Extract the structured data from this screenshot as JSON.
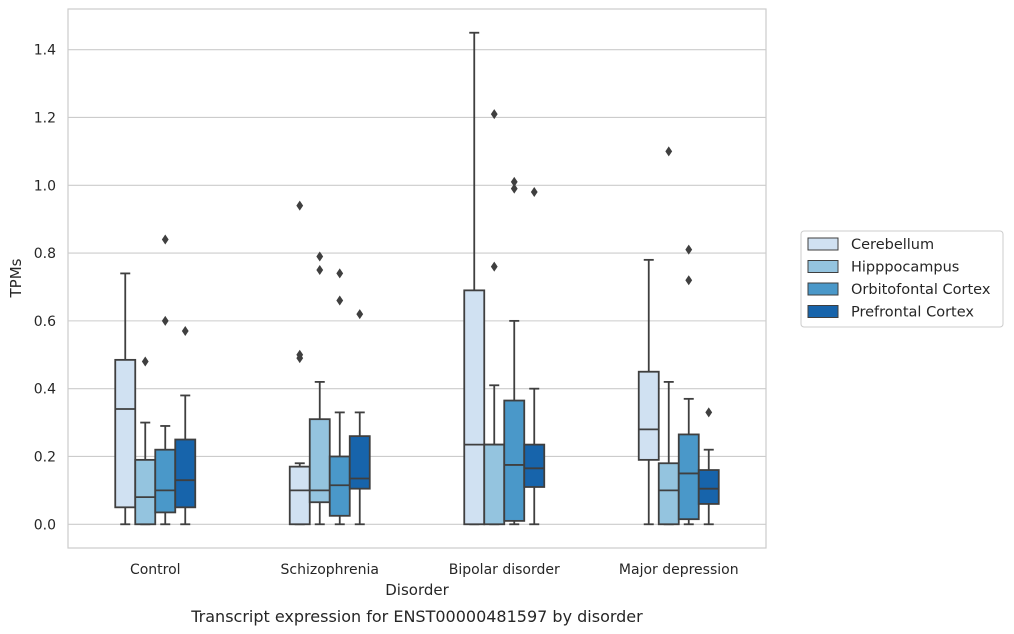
{
  "chart_data": {
    "type": "box",
    "title": "",
    "caption": "Transcript expression for ENST00000481597 by disorder",
    "xlabel": "Disorder",
    "ylabel": "TPMs",
    "ylim": [
      -0.07,
      1.52
    ],
    "yticks": [
      0.0,
      0.2,
      0.4,
      0.6,
      0.8,
      1.0,
      1.2,
      1.4
    ],
    "ytick_labels": [
      "0.0",
      "0.2",
      "0.4",
      "0.6",
      "0.8",
      "1.0",
      "1.2",
      "1.4"
    ],
    "grid": "horizontal",
    "legend_position": "right",
    "categories": [
      "Control",
      "Schizophrenia",
      "Bipolar disorder",
      "Major depression"
    ],
    "series": [
      {
        "name": "Cerebellum",
        "color": "#d0e1f2",
        "boxes": [
          {
            "whisker_low": 0.0,
            "q1": 0.05,
            "median": 0.34,
            "q3": 0.485,
            "whisker_high": 0.74,
            "outliers": []
          },
          {
            "whisker_low": 0.0,
            "q1": 0.0,
            "median": 0.1,
            "q3": 0.17,
            "whisker_high": 0.18,
            "outliers": [
              0.49,
              0.5,
              0.94
            ]
          },
          {
            "whisker_low": 0.0,
            "q1": 0.0,
            "median": 0.235,
            "q3": 0.69,
            "whisker_high": 1.45,
            "outliers": []
          },
          {
            "whisker_low": 0.0,
            "q1": 0.19,
            "median": 0.28,
            "q3": 0.45,
            "whisker_high": 0.78,
            "outliers": []
          }
        ]
      },
      {
        "name": "Hipppocampus",
        "color": "#94c4df",
        "boxes": [
          {
            "whisker_low": 0.0,
            "q1": 0.0,
            "median": 0.08,
            "q3": 0.19,
            "whisker_high": 0.3,
            "outliers": [
              0.48
            ]
          },
          {
            "whisker_low": 0.0,
            "q1": 0.065,
            "median": 0.1,
            "q3": 0.31,
            "whisker_high": 0.42,
            "outliers": [
              0.75,
              0.79
            ]
          },
          {
            "whisker_low": 0.0,
            "q1": 0.0,
            "median": 0.235,
            "q3": 0.235,
            "whisker_high": 0.41,
            "outliers": [
              0.76,
              1.21
            ]
          },
          {
            "whisker_low": 0.0,
            "q1": 0.0,
            "median": 0.1,
            "q3": 0.18,
            "whisker_high": 0.42,
            "outliers": [
              1.1
            ]
          }
        ]
      },
      {
        "name": "Orbitofontal Cortex",
        "color": "#4a98c9",
        "boxes": [
          {
            "whisker_low": 0.0,
            "q1": 0.035,
            "median": 0.1,
            "q3": 0.22,
            "whisker_high": 0.29,
            "outliers": [
              0.6,
              0.84
            ]
          },
          {
            "whisker_low": 0.0,
            "q1": 0.025,
            "median": 0.115,
            "q3": 0.2,
            "whisker_high": 0.33,
            "outliers": [
              0.66,
              0.74
            ]
          },
          {
            "whisker_low": 0.0,
            "q1": 0.01,
            "median": 0.175,
            "q3": 0.365,
            "whisker_high": 0.6,
            "outliers": [
              0.99,
              1.01
            ]
          },
          {
            "whisker_low": 0.0,
            "q1": 0.015,
            "median": 0.15,
            "q3": 0.265,
            "whisker_high": 0.37,
            "outliers": [
              0.72,
              0.81
            ]
          }
        ]
      },
      {
        "name": "Prefrontal Cortex",
        "color": "#1764ab",
        "boxes": [
          {
            "whisker_low": 0.0,
            "q1": 0.05,
            "median": 0.13,
            "q3": 0.25,
            "whisker_high": 0.38,
            "outliers": [
              0.57
            ]
          },
          {
            "whisker_low": 0.0,
            "q1": 0.105,
            "median": 0.135,
            "q3": 0.26,
            "whisker_high": 0.33,
            "outliers": [
              0.62
            ]
          },
          {
            "whisker_low": 0.0,
            "q1": 0.11,
            "median": 0.165,
            "q3": 0.235,
            "whisker_high": 0.4,
            "outliers": [
              0.98
            ]
          },
          {
            "whisker_low": 0.0,
            "q1": 0.06,
            "median": 0.105,
            "q3": 0.16,
            "whisker_high": 0.22,
            "outliers": [
              0.33
            ]
          }
        ]
      }
    ]
  }
}
